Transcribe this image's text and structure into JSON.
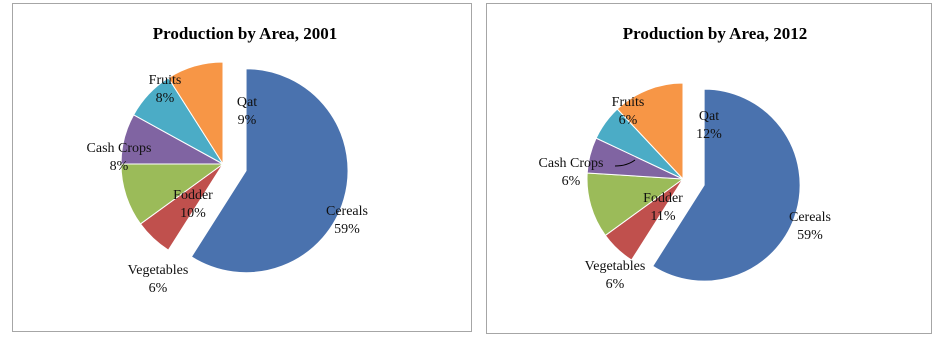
{
  "chart_data": [
    {
      "type": "pie",
      "title": "Production by Area, 2001",
      "categories": [
        "Cereals",
        "Vegetables",
        "Fodder",
        "Cash Crops",
        "Fruits",
        "Qat"
      ],
      "values": [
        59,
        6,
        10,
        8,
        8,
        9
      ],
      "labels": [
        "59%",
        "6%",
        "10%",
        "8%",
        "8%",
        "9%"
      ],
      "exploded": "Cereals",
      "colors": [
        "#4a72ae",
        "#c0504d",
        "#9bbb59",
        "#8064a2",
        "#4bacc6",
        "#f79646"
      ]
    },
    {
      "type": "pie",
      "title": "Production by Area, 2012",
      "categories": [
        "Cereals",
        "Vegetables",
        "Fodder",
        "Cash Crops",
        "Fruits",
        "Qat"
      ],
      "values": [
        59,
        6,
        11,
        6,
        6,
        12
      ],
      "labels": [
        "59%",
        "6%",
        "11%",
        "6%",
        "6%",
        "12%"
      ],
      "exploded": "Cereals",
      "colors": [
        "#4a72ae",
        "#c0504d",
        "#9bbb59",
        "#8064a2",
        "#4bacc6",
        "#f79646"
      ]
    }
  ]
}
